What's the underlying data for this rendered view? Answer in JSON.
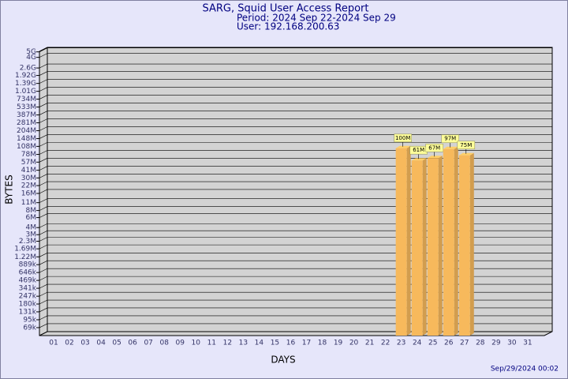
{
  "chart_data": {
    "type": "bar3d",
    "title": "SARG, Squid User Access Report",
    "subtitle": [
      "Period: 2024 Sep 22-2024 Sep 29",
      "User: 192.168.200.63"
    ],
    "xlabel": "DAYS",
    "ylabel": "BYTES",
    "footer": "Sep/29/2024 00:02",
    "categories": [
      "01",
      "02",
      "03",
      "04",
      "05",
      "06",
      "07",
      "08",
      "09",
      "10",
      "11",
      "12",
      "13",
      "14",
      "15",
      "16",
      "17",
      "18",
      "19",
      "20",
      "21",
      "22",
      "23",
      "24",
      "25",
      "26",
      "27",
      "28",
      "29",
      "30",
      "31"
    ],
    "values": [
      null,
      null,
      null,
      null,
      null,
      null,
      null,
      null,
      null,
      null,
      null,
      null,
      null,
      null,
      null,
      null,
      null,
      null,
      null,
      null,
      null,
      null,
      100000000,
      61000000,
      67000000,
      97000000,
      75000000,
      null,
      null,
      null,
      null
    ],
    "value_labels": [
      null,
      null,
      null,
      null,
      null,
      null,
      null,
      null,
      null,
      null,
      null,
      null,
      null,
      null,
      null,
      null,
      null,
      null,
      null,
      null,
      null,
      null,
      "100M",
      "61M",
      "67M",
      "97M",
      "75M",
      null,
      null,
      null,
      null
    ],
    "color": "#f7b95c",
    "log_scale": true,
    "grid": true,
    "ylim": [
      50000,
      6000000000
    ],
    "yticks": [
      {
        "value": 69000,
        "label": "69k"
      },
      {
        "value": 95000,
        "label": "95k"
      },
      {
        "value": 131000,
        "label": "131k"
      },
      {
        "value": 180000,
        "label": "180k"
      },
      {
        "value": 247000,
        "label": "247k"
      },
      {
        "value": 341000,
        "label": "341k"
      },
      {
        "value": 469000,
        "label": "469k"
      },
      {
        "value": 646000,
        "label": "646k"
      },
      {
        "value": 889000,
        "label": "889k"
      },
      {
        "value": 1220000,
        "label": "1.22M"
      },
      {
        "value": 1690000,
        "label": "1.69M"
      },
      {
        "value": 2300000,
        "label": "2.3M"
      },
      {
        "value": 3000000,
        "label": "3M"
      },
      {
        "value": 4000000,
        "label": "4M"
      },
      {
        "value": 6000000,
        "label": "6M"
      },
      {
        "value": 8000000,
        "label": "8M"
      },
      {
        "value": 11000000,
        "label": "11M"
      },
      {
        "value": 16000000,
        "label": "16M"
      },
      {
        "value": 22000000,
        "label": "22M"
      },
      {
        "value": 30000000,
        "label": "30M"
      },
      {
        "value": 41000000,
        "label": "41M"
      },
      {
        "value": 57000000,
        "label": "57M"
      },
      {
        "value": 78000000,
        "label": "78M"
      },
      {
        "value": 108000000,
        "label": "108M"
      },
      {
        "value": 148000000,
        "label": "148M"
      },
      {
        "value": 204000000,
        "label": "204M"
      },
      {
        "value": 281000000,
        "label": "281M"
      },
      {
        "value": 387000000,
        "label": "387M"
      },
      {
        "value": 533000000,
        "label": "533M"
      },
      {
        "value": 734000000,
        "label": "734M"
      },
      {
        "value": 1010000000,
        "label": "1.01G"
      },
      {
        "value": 1390000000,
        "label": "1.39G"
      },
      {
        "value": 1920000000,
        "label": "1.92G"
      },
      {
        "value": 2600000000,
        "label": "2.6G"
      },
      {
        "value": 4000000000,
        "label": "4G"
      },
      {
        "value": 5000000000,
        "label": "5G"
      }
    ]
  }
}
